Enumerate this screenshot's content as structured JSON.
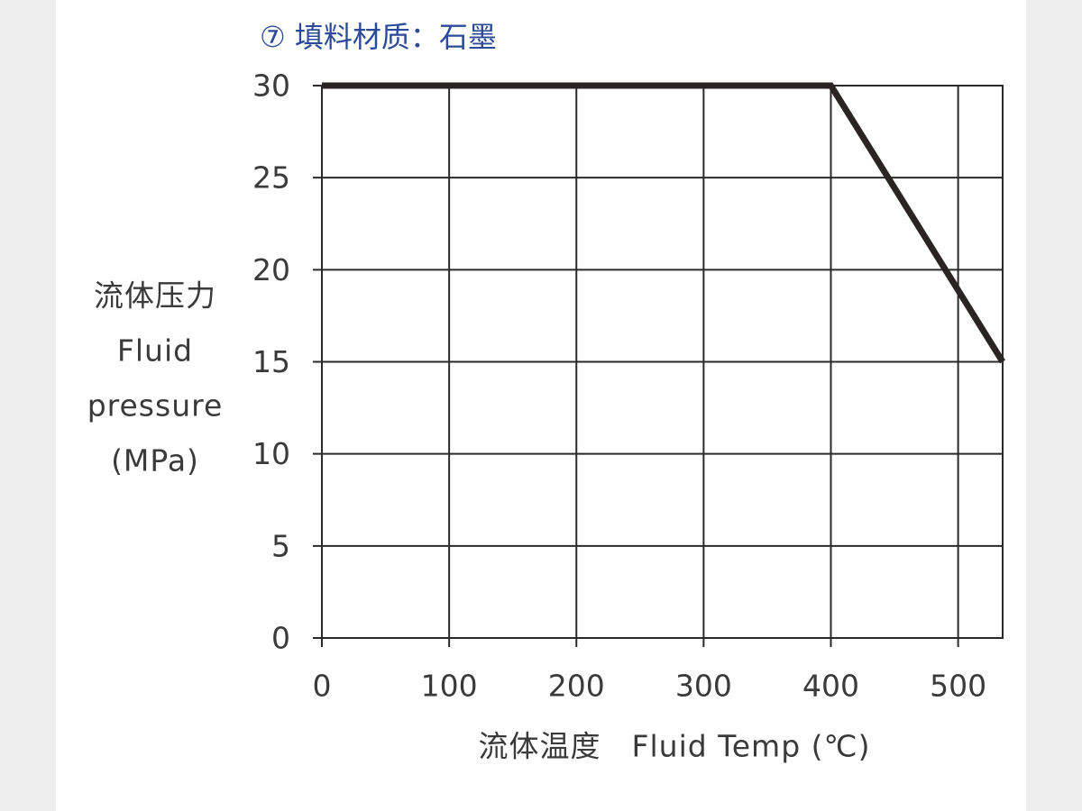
{
  "chart_data": {
    "type": "line",
    "title": "⑦ 填料材质：石墨",
    "x_label": "流体温度　Fluid Temp (℃)",
    "y_label": [
      "流体压力",
      "Fluid",
      "pressure",
      "(MPa)"
    ],
    "x": [
      0,
      400,
      535
    ],
    "values": [
      30,
      30,
      15
    ],
    "color": "#2a2425",
    "xlim": [
      0,
      535
    ],
    "xticks": [
      0,
      100,
      200,
      300,
      400,
      500
    ],
    "ylim": [
      0,
      30
    ],
    "yticks": [
      0,
      5,
      10,
      15,
      20,
      25,
      30
    ],
    "grid": true
  }
}
